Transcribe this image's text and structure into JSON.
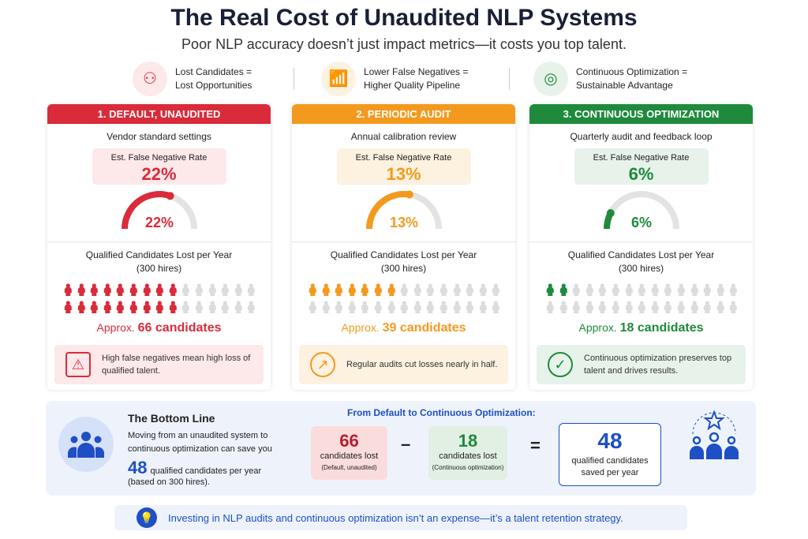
{
  "title": "The Real Cost of Unaudited NLP Systems",
  "subtitle": "Poor NLP accuracy doesn’t just impact metrics—it costs you top talent.",
  "highlights": [
    {
      "icon": "user-x-icon",
      "line1": "Lost Candidates =",
      "line2": "Lost Opportunities",
      "color": "#d92b3a"
    },
    {
      "icon": "bar-chart-up-icon",
      "line1": "Lower False Negatives =",
      "line2": "Higher Quality Pipeline",
      "color": "#f39a1e"
    },
    {
      "icon": "target-icon",
      "line1": "Continuous Optimization =",
      "line2": "Sustainable Advantage",
      "color": "#1f8a3c"
    }
  ],
  "cards": [
    {
      "header": "1. DEFAULT, UNAUDITED",
      "subtitle": "Vendor standard settings",
      "rate_label": "Est. False Negative Rate",
      "rate": "22%",
      "gauge_fill": 0.6,
      "lost_label": "Qualified Candidates Lost per Year",
      "hires": "(300 hires)",
      "approx_prefix": "Approx.",
      "approx_value": "66 candidates",
      "filled_row1": 9,
      "filled_row2": 9,
      "note": "High false negatives mean high loss of qualified talent.",
      "note_icon": "warning-icon",
      "color": "#d92b3a",
      "tint": "#fde8ea"
    },
    {
      "header": "2. PERIODIC AUDIT",
      "subtitle": "Annual calibration review",
      "rate_label": "Est. False Negative Rate",
      "rate": "13%",
      "gauge_fill": 0.55,
      "lost_label": "Qualified Candidates Lost per Year",
      "hires": "(300 hires)",
      "approx_prefix": "Approx.",
      "approx_value": "39 candidates",
      "filled_row1": 7,
      "filled_row2": 0,
      "note": "Regular audits cut losses nearly in half.",
      "note_icon": "trend-up-icon",
      "color": "#f39a1e",
      "tint": "#fdf1e0"
    },
    {
      "header": "3. CONTINUOUS OPTIMIZATION",
      "subtitle": "Quarterly audit and feedback loop",
      "rate_label": "Est. False Negative Rate",
      "rate": "6%",
      "gauge_fill": 0.15,
      "lost_label": "Qualified Candidates Lost per Year",
      "hires": "(300 hires)",
      "approx_prefix": "Approx.",
      "approx_value": "18 candidates",
      "filled_row1": 2,
      "filled_row2": 0,
      "note": "Continuous optimization preserves top talent and drives results.",
      "note_icon": "shield-check-icon",
      "color": "#1f8a3c",
      "tint": "#e7f3ea"
    }
  ],
  "bottom": {
    "heading": "The Bottom Line",
    "text1": "Moving from an unaudited system to continuous optimization can save you",
    "big": "48",
    "text2": "qualified candidates per year",
    "text3": "(based on 300 hires).",
    "eq_title": "From Default to Continuous Optimization:",
    "a_value": "66",
    "a_label": "candidates lost",
    "a_sub": "(Default, unaudited)",
    "minus": "–",
    "b_value": "18",
    "b_label": "candidates lost",
    "b_sub": "(Continuous optimization)",
    "equals": "=",
    "result_value": "48",
    "result_label": "qualified candidates saved per year"
  },
  "footer": "Investing in NLP audits and continuous optimization isn’t an expense—it’s a talent retention strategy."
}
